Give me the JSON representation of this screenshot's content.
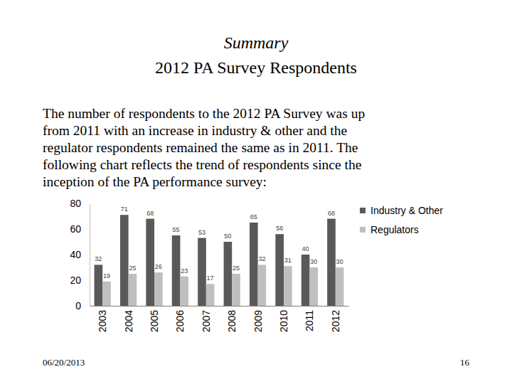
{
  "page": {
    "title": "Summary",
    "subtitle": "2012 PA Survey Respondents",
    "text": [
      "The number of respondents to the 2012 PA Survey was up",
      "from 2011 with an increase in industry & other and the",
      "regulator respondents remained the same as in 2011. The",
      "following chart reflects the trend of respondents since the",
      "inception of the PA performance survey:"
    ],
    "date": "06/20/2013",
    "page_number": "16"
  },
  "chart_data": {
    "type": "bar",
    "categories": [
      "2003",
      "2004",
      "2005",
      "2006",
      "2007",
      "2008",
      "2009",
      "2010",
      "2011",
      "2012"
    ],
    "series": [
      {
        "name": "Industry & Other",
        "color": "#595959",
        "values": [
          32,
          71,
          68,
          55,
          53,
          50,
          65,
          56,
          40,
          68
        ]
      },
      {
        "name": "Regulators",
        "color": "#bfbfbf",
        "values": [
          19,
          25,
          26,
          23,
          17,
          25,
          32,
          31,
          30,
          30
        ]
      }
    ],
    "ylim": [
      0,
      80
    ],
    "yticks": [
      0,
      20,
      40,
      60,
      80
    ],
    "grid": false,
    "legend": "right",
    "data_labels": true
  }
}
